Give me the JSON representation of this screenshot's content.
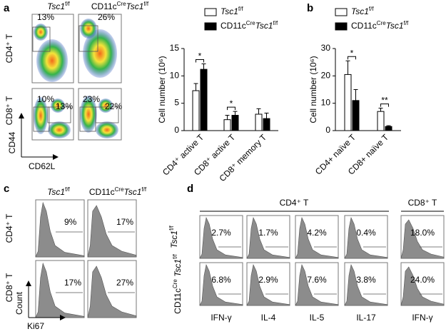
{
  "panel_labels": [
    "a",
    "b",
    "c",
    "d"
  ],
  "flow": {
    "headers": [
      "Tsc1f/f",
      "CD11cCreTsc1f/f"
    ],
    "rows": [
      "CD4⁺ T",
      "CD8⁺ T"
    ],
    "percents": [
      [
        "13%",
        "26%"
      ],
      [
        "10%",
        "13%",
        "23%",
        "22%"
      ]
    ],
    "y_axis": "CD44",
    "x_axis": "CD62L"
  },
  "chart_data": [
    {
      "type": "bar",
      "y_label": "Cell number (10⁶)",
      "categories": [
        "CD4⁺ active T",
        "CD8⁺ active T",
        "CD8⁺ memory T"
      ],
      "series": [
        {
          "name": "Tsc1f/f",
          "color": "#ffffff",
          "values": [
            7.3,
            2.0,
            3.0
          ],
          "errors": [
            1.3,
            0.8,
            1.0
          ]
        },
        {
          "name": "CD11cCreTsc1f/f",
          "color": "#000000",
          "values": [
            11.2,
            2.8,
            2.2
          ],
          "errors": [
            1.0,
            0.7,
            1.0
          ]
        }
      ],
      "significance": [
        "*",
        "*",
        null
      ],
      "ylim": [
        0,
        15
      ],
      "yticks": [
        0,
        5,
        10,
        15
      ]
    },
    {
      "type": "bar",
      "y_label": "Cell number (10⁶)",
      "categories": [
        "CD4+ naïve T",
        "CD8+ naïve T"
      ],
      "series": [
        {
          "name": "Tsc1f/f",
          "color": "#ffffff",
          "values": [
            20.5,
            7.0
          ],
          "errors": [
            5.0,
            1.2
          ]
        },
        {
          "name": "CD11cCreTsc1f/f",
          "color": "#000000",
          "values": [
            11.0,
            1.5
          ],
          "errors": [
            4.0,
            0.3
          ]
        }
      ],
      "significance": [
        "*",
        "**"
      ],
      "ylim": [
        0,
        30
      ],
      "yticks": [
        0,
        10,
        20,
        30
      ]
    }
  ],
  "ki67": {
    "headers": [
      "Tsc1f/f",
      "CD11cCreTsc1f/f"
    ],
    "rows": [
      "CD4⁺ T",
      "CD8⁺ T"
    ],
    "percents": [
      [
        "9%",
        "17%"
      ],
      [
        "17%",
        "27%"
      ]
    ],
    "y_axis": "Count",
    "x_axis": "Ki67"
  },
  "cytokines": {
    "groups": [
      "CD4⁺ T",
      "CD8⁺ T"
    ],
    "rows": [
      "Tsc1f/f",
      "CD11cCre Tsc1f/f"
    ],
    "columns": [
      "IFN-γ",
      "IL-4",
      "IL-5",
      "IL-17",
      "IFN-γ"
    ],
    "percents": [
      [
        "2.7%",
        "1.7%",
        "4.2%",
        "0.4%",
        "18.0%"
      ],
      [
        "6.8%",
        "2.9%",
        "7.6%",
        "3.8%",
        "24.0%"
      ]
    ]
  }
}
